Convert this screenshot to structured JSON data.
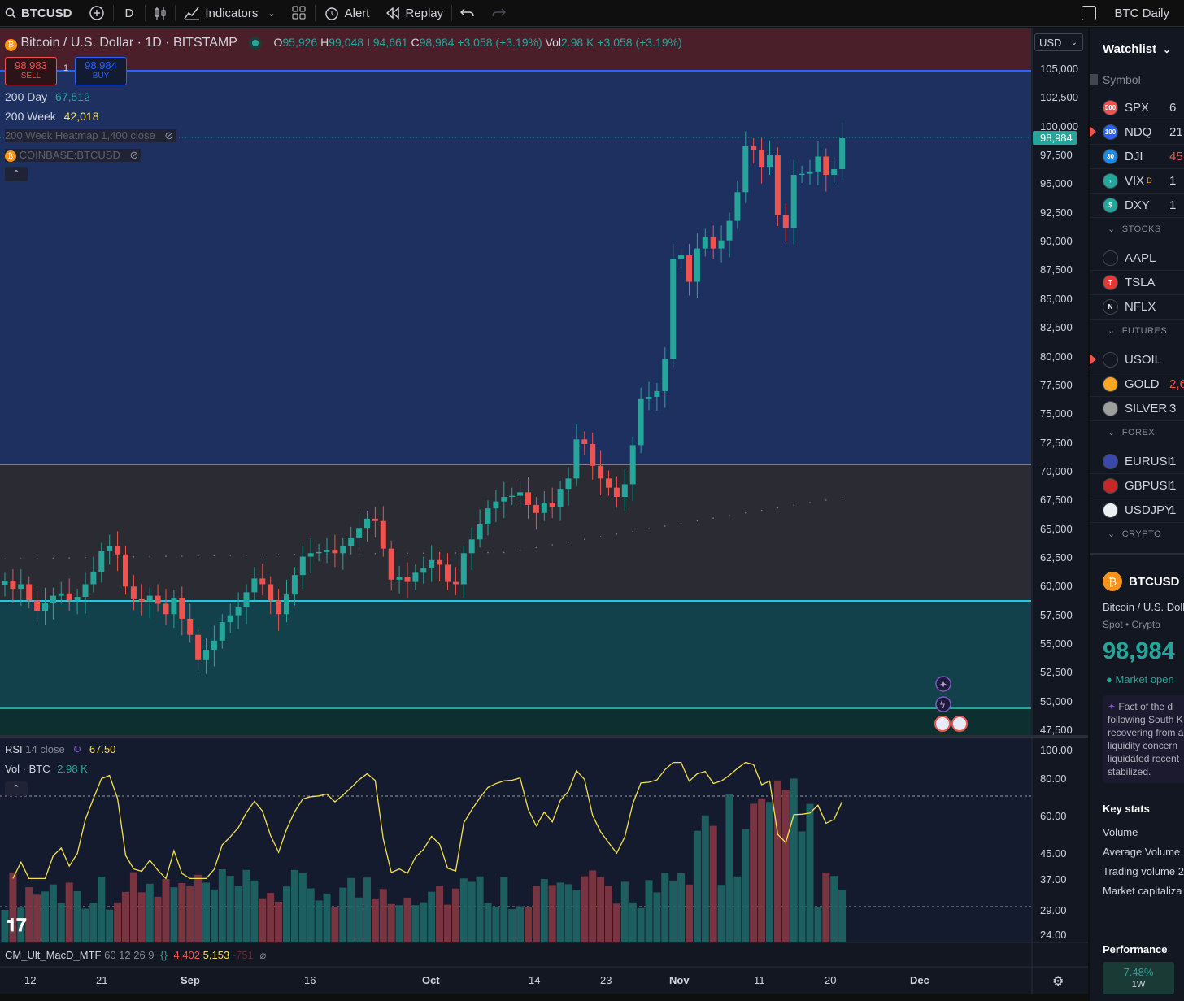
{
  "toolbar": {
    "symbol": "BTCUSD",
    "interval": "D",
    "indicators": "Indicators",
    "alert": "Alert",
    "replay": "Replay",
    "layout_name": "BTC Daily"
  },
  "legend": {
    "title": "Bitcoin / U.S. Dollar · 1D · BITSTAMP",
    "o_label": "O",
    "o": "95,926",
    "h_label": "H",
    "h": "99,048",
    "l_label": "L",
    "l": "94,661",
    "c_label": "C",
    "c": "98,984",
    "change": "+3,058 (+3.19%)",
    "vol_label": "Vol",
    "vol": "2.98 K",
    "vol_change": "+3,058 (+3.19%)",
    "sell_price": "98,983",
    "sell": "SELL",
    "qty": "1",
    "buy_price": "98,984",
    "buy": "BUY",
    "ma200d_label": "200 Day",
    "ma200d": "67,512",
    "ma200w_label": "200 Week",
    "ma200w": "42,018",
    "heatmap": "200 Week Heatmap 1,400 close",
    "compare": "COINBASE:BTCUSD"
  },
  "currency": "USD",
  "price_axis": [
    "105,000",
    "102,500",
    "100,000",
    "97,500",
    "95,000",
    "92,500",
    "90,000",
    "87,500",
    "85,000",
    "82,500",
    "80,000",
    "77,500",
    "75,000",
    "72,500",
    "70,000",
    "67,500",
    "65,000",
    "62,500",
    "60,000",
    "57,500",
    "55,000",
    "52,500",
    "50,000",
    "47,500"
  ],
  "current_price": "98,984",
  "rsi": {
    "label": "RSI",
    "params": "14 close",
    "value": "67.50"
  },
  "volume": {
    "label": "Vol · BTC",
    "value": "2.98 K"
  },
  "rsi_axis": [
    "100.00",
    "80.00",
    "60.00",
    "45.00",
    "37.00",
    "29.00",
    "24.00"
  ],
  "macd": {
    "label": "CM_Ult_MacD_MTF",
    "params": "60 12 26 9",
    "v1": "4,402",
    "v2": "5,153",
    "v3": "-751"
  },
  "time_axis": [
    "12",
    "21",
    "Sep",
    "16",
    "Oct",
    "14",
    "23",
    "Nov",
    "11",
    "20",
    "Dec"
  ],
  "colors": {
    "up": "#26a69a",
    "down": "#ef5350",
    "rsi": "#f5e14a",
    "accent": "#2962ff"
  },
  "chart_data": {
    "type": "candlestick",
    "interval": "1D",
    "close": [
      60500,
      59800,
      60200,
      58800,
      57900,
      58600,
      59200,
      59400,
      58800,
      59100,
      60200,
      61300,
      63100,
      63500,
      62800,
      60000,
      58900,
      58700,
      59200,
      58500,
      57600,
      59000,
      57200,
      55800,
      53600,
      54500,
      55300,
      56900,
      57500,
      58200,
      59500,
      60700,
      60200,
      58800,
      57600,
      59300,
      61000,
      62600,
      62900,
      63000,
      63200,
      62900,
      63500,
      64200,
      65100,
      65900,
      65700,
      63300,
      60600,
      60800,
      60400,
      61200,
      61600,
      62300,
      61900,
      60400,
      60200,
      62900,
      64100,
      65400,
      66800,
      67400,
      67800,
      67900,
      68200,
      67100,
      66400,
      67300,
      66900,
      68500,
      69400,
      72800,
      72400,
      70500,
      69400,
      68600,
      67800,
      68900,
      72300,
      76300,
      76500,
      77000,
      79800,
      88500,
      88800,
      86500,
      89400,
      90400,
      89400,
      90100,
      91800,
      94300,
      98300,
      98000,
      96500,
      97500,
      92300,
      91200,
      95800,
      95900,
      96100,
      97400,
      95800,
      96300,
      98984
    ]
  }
}
